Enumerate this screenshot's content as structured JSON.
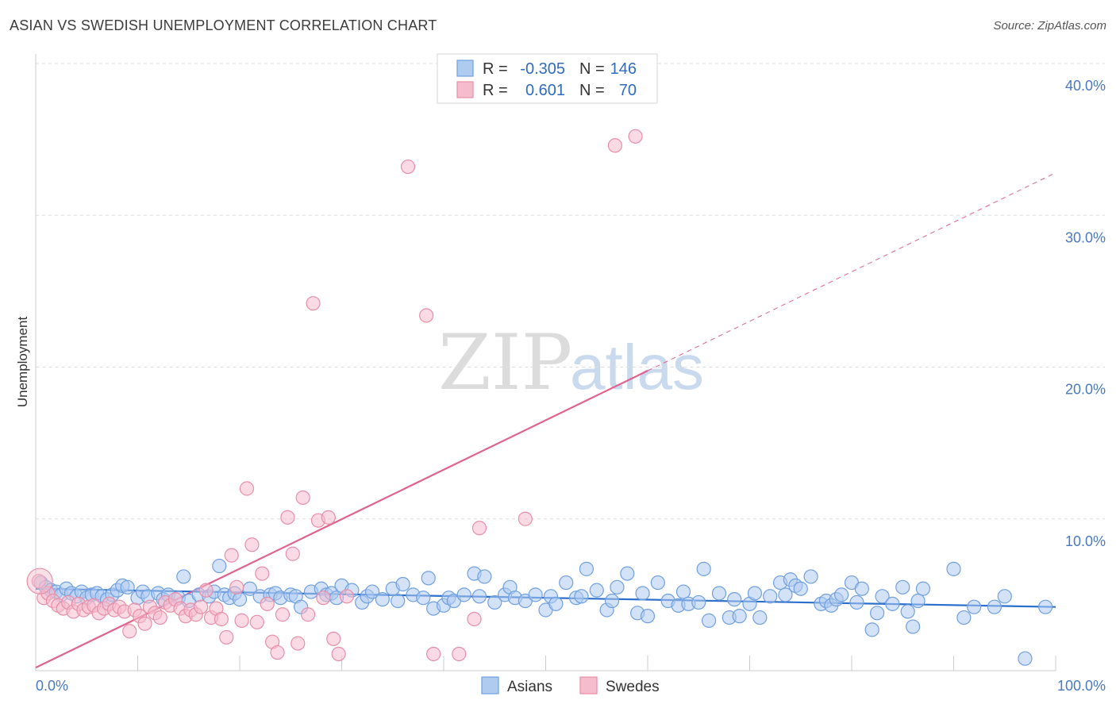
{
  "title": "ASIAN VS SWEDISH UNEMPLOYMENT CORRELATION CHART",
  "source": "Source: ZipAtlas.com",
  "watermark": {
    "part1": "ZIP",
    "part2": "atlas"
  },
  "chart_data": {
    "type": "scatter",
    "title": "ASIAN VS SWEDISH UNEMPLOYMENT CORRELATION CHART",
    "xlabel": "",
    "ylabel": "Unemployment",
    "xlim": [
      0,
      100
    ],
    "ylim": [
      0,
      40
    ],
    "x_tick_labels": [
      "0.0%",
      "100.0%"
    ],
    "y_ticks": [
      10,
      20,
      30,
      40
    ],
    "y_tick_labels": [
      "10.0%",
      "20.0%",
      "30.0%",
      "40.0%"
    ],
    "legend": [
      {
        "r_label": "R =",
        "r_value": "-0.305",
        "n_label": "N =",
        "n_value": "146"
      },
      {
        "r_label": "R =",
        "r_value": "0.601",
        "n_label": "N =",
        "n_value": "70"
      }
    ],
    "series": [
      {
        "name": "Asians",
        "color": "#6fa0e0",
        "fill": "#aecbf0",
        "line_color": "#2b6fcc",
        "trend": {
          "x0": 0,
          "y0": 5.4,
          "x1": 100,
          "y1": 4.2,
          "dashed_from": null
        },
        "points": [
          [
            0.5,
            5.8
          ],
          [
            1,
            5.5
          ],
          [
            1.5,
            5.3
          ],
          [
            2,
            5.2
          ],
          [
            2.5,
            5.0
          ],
          [
            3,
            5.4
          ],
          [
            3.5,
            5.1
          ],
          [
            4,
            4.9
          ],
          [
            4.5,
            5.2
          ],
          [
            5,
            4.8
          ],
          [
            5.5,
            5.0
          ],
          [
            6,
            5.1
          ],
          [
            6.5,
            4.9
          ],
          [
            7,
            4.7
          ],
          [
            7.5,
            5.0
          ],
          [
            8,
            5.3
          ],
          [
            8.5,
            5.6
          ],
          [
            9,
            5.5
          ],
          [
            10,
            4.8
          ],
          [
            10.5,
            5.2
          ],
          [
            11,
            4.9
          ],
          [
            12,
            5.1
          ],
          [
            12.5,
            4.7
          ],
          [
            13,
            5.0
          ],
          [
            14,
            4.8
          ],
          [
            14.5,
            6.2
          ],
          [
            15,
            4.6
          ],
          [
            16,
            5.0
          ],
          [
            17,
            4.9
          ],
          [
            17.5,
            5.2
          ],
          [
            18,
            6.9
          ],
          [
            18.5,
            5.0
          ],
          [
            19,
            4.8
          ],
          [
            19.5,
            5.1
          ],
          [
            20,
            4.7
          ],
          [
            21,
            5.4
          ],
          [
            22,
            4.9
          ],
          [
            23,
            5.0
          ],
          [
            23.5,
            5.1
          ],
          [
            24,
            4.8
          ],
          [
            25,
            5.0
          ],
          [
            25.5,
            4.9
          ],
          [
            26,
            4.2
          ],
          [
            27,
            5.2
          ],
          [
            28,
            5.4
          ],
          [
            28.5,
            5.0
          ],
          [
            29,
            5.1
          ],
          [
            29.5,
            4.8
          ],
          [
            30,
            5.6
          ],
          [
            31,
            5.3
          ],
          [
            32,
            4.5
          ],
          [
            32.5,
            4.9
          ],
          [
            33,
            5.2
          ],
          [
            34,
            4.7
          ],
          [
            35,
            5.4
          ],
          [
            35.5,
            4.6
          ],
          [
            36,
            5.7
          ],
          [
            37,
            5.0
          ],
          [
            38,
            4.8
          ],
          [
            38.5,
            6.1
          ],
          [
            39,
            4.1
          ],
          [
            40,
            4.3
          ],
          [
            40.5,
            4.8
          ],
          [
            41,
            4.6
          ],
          [
            42,
            5.0
          ],
          [
            43,
            6.4
          ],
          [
            43.5,
            4.9
          ],
          [
            44,
            6.2
          ],
          [
            45,
            4.5
          ],
          [
            46,
            5.0
          ],
          [
            46.5,
            5.5
          ],
          [
            47,
            4.8
          ],
          [
            48,
            4.6
          ],
          [
            49,
            5.0
          ],
          [
            50,
            4.0
          ],
          [
            50.5,
            4.9
          ],
          [
            51,
            4.4
          ],
          [
            52,
            5.8
          ],
          [
            53,
            4.8
          ],
          [
            53.5,
            4.9
          ],
          [
            54,
            6.7
          ],
          [
            55,
            5.3
          ],
          [
            56,
            4.0
          ],
          [
            56.5,
            4.6
          ],
          [
            57,
            5.5
          ],
          [
            58,
            6.4
          ],
          [
            59,
            3.8
          ],
          [
            59.5,
            5.1
          ],
          [
            60,
            3.6
          ],
          [
            61,
            5.8
          ],
          [
            62,
            4.6
          ],
          [
            63,
            4.3
          ],
          [
            63.5,
            5.2
          ],
          [
            64,
            4.4
          ],
          [
            65,
            4.5
          ],
          [
            65.5,
            6.7
          ],
          [
            66,
            3.3
          ],
          [
            67,
            5.1
          ],
          [
            68,
            3.5
          ],
          [
            68.5,
            4.7
          ],
          [
            69,
            3.6
          ],
          [
            70,
            4.4
          ],
          [
            70.5,
            5.1
          ],
          [
            71,
            3.5
          ],
          [
            72,
            4.9
          ],
          [
            73,
            5.8
          ],
          [
            73.5,
            5.0
          ],
          [
            74,
            6.0
          ],
          [
            74.5,
            5.6
          ],
          [
            75,
            5.4
          ],
          [
            76,
            6.2
          ],
          [
            77,
            4.4
          ],
          [
            77.5,
            4.6
          ],
          [
            78,
            4.3
          ],
          [
            78.5,
            4.7
          ],
          [
            79,
            5.0
          ],
          [
            80,
            5.8
          ],
          [
            80.5,
            4.5
          ],
          [
            81,
            5.4
          ],
          [
            82,
            2.7
          ],
          [
            82.5,
            3.8
          ],
          [
            83,
            4.9
          ],
          [
            84,
            4.4
          ],
          [
            85,
            5.5
          ],
          [
            85.5,
            3.9
          ],
          [
            86,
            2.9
          ],
          [
            86.5,
            4.6
          ],
          [
            87,
            5.4
          ],
          [
            90,
            6.7
          ],
          [
            91,
            3.5
          ],
          [
            92,
            4.2
          ],
          [
            94,
            4.2
          ],
          [
            95,
            4.9
          ],
          [
            97,
            0.8
          ],
          [
            99,
            4.2
          ]
        ]
      },
      {
        "name": "Swedes",
        "color": "#e88ea8",
        "fill": "#f5bccd",
        "line_color": "#e0628e",
        "trend": {
          "x0": 0,
          "y0": 0.2,
          "x1": 100,
          "y1": 32.8,
          "dashed_from": 60
        },
        "points": [
          [
            0.3,
            5.9
          ],
          [
            0.8,
            4.8
          ],
          [
            1.2,
            5.1
          ],
          [
            1.7,
            4.6
          ],
          [
            2.2,
            4.3
          ],
          [
            2.7,
            4.1
          ],
          [
            3.2,
            4.5
          ],
          [
            3.7,
            3.9
          ],
          [
            4.2,
            4.4
          ],
          [
            4.7,
            4.0
          ],
          [
            5.2,
            4.2
          ],
          [
            5.7,
            4.3
          ],
          [
            6.2,
            3.8
          ],
          [
            6.7,
            4.1
          ],
          [
            7.2,
            4.4
          ],
          [
            7.7,
            4.0
          ],
          [
            8.2,
            4.2
          ],
          [
            8.7,
            3.9
          ],
          [
            9.2,
            2.6
          ],
          [
            9.7,
            4.0
          ],
          [
            10.2,
            3.6
          ],
          [
            10.7,
            3.1
          ],
          [
            11.2,
            4.2
          ],
          [
            11.7,
            3.8
          ],
          [
            12.2,
            3.5
          ],
          [
            12.7,
            4.5
          ],
          [
            13.2,
            4.3
          ],
          [
            13.7,
            4.7
          ],
          [
            14.2,
            4.1
          ],
          [
            14.7,
            3.6
          ],
          [
            15.2,
            4.0
          ],
          [
            15.7,
            3.7
          ],
          [
            16.2,
            4.2
          ],
          [
            16.7,
            5.3
          ],
          [
            17.2,
            3.5
          ],
          [
            17.7,
            4.1
          ],
          [
            18.2,
            3.4
          ],
          [
            18.7,
            2.2
          ],
          [
            19.2,
            7.6
          ],
          [
            19.7,
            5.5
          ],
          [
            20.2,
            3.3
          ],
          [
            20.7,
            12.0
          ],
          [
            21.2,
            8.3
          ],
          [
            21.7,
            3.2
          ],
          [
            22.2,
            6.4
          ],
          [
            22.7,
            4.4
          ],
          [
            23.2,
            1.9
          ],
          [
            23.7,
            1.2
          ],
          [
            24.2,
            3.7
          ],
          [
            24.7,
            10.1
          ],
          [
            25.2,
            7.7
          ],
          [
            25.7,
            1.8
          ],
          [
            26.2,
            11.4
          ],
          [
            26.7,
            3.7
          ],
          [
            27.2,
            24.2
          ],
          [
            27.7,
            9.9
          ],
          [
            28.2,
            4.8
          ],
          [
            28.7,
            10.1
          ],
          [
            29.2,
            2.1
          ],
          [
            29.7,
            1.1
          ],
          [
            36.5,
            33.2
          ],
          [
            38.3,
            23.4
          ],
          [
            41.5,
            1.1
          ],
          [
            43.5,
            9.4
          ],
          [
            43.0,
            3.4
          ],
          [
            48.0,
            10.0
          ],
          [
            56.8,
            34.6
          ],
          [
            58.8,
            35.2
          ],
          [
            39.0,
            1.1
          ],
          [
            30.5,
            4.9
          ]
        ]
      }
    ]
  }
}
